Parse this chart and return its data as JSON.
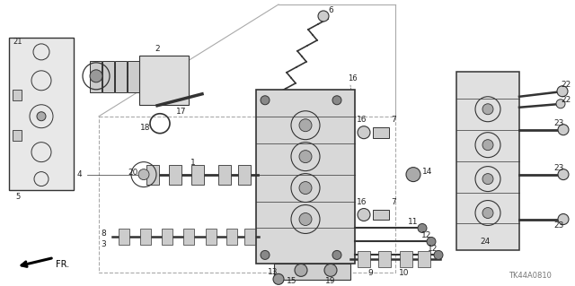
{
  "bg_color": "#ffffff",
  "line_color": "#333333",
  "part_code": "TK44A0810",
  "fr_label": "FR."
}
